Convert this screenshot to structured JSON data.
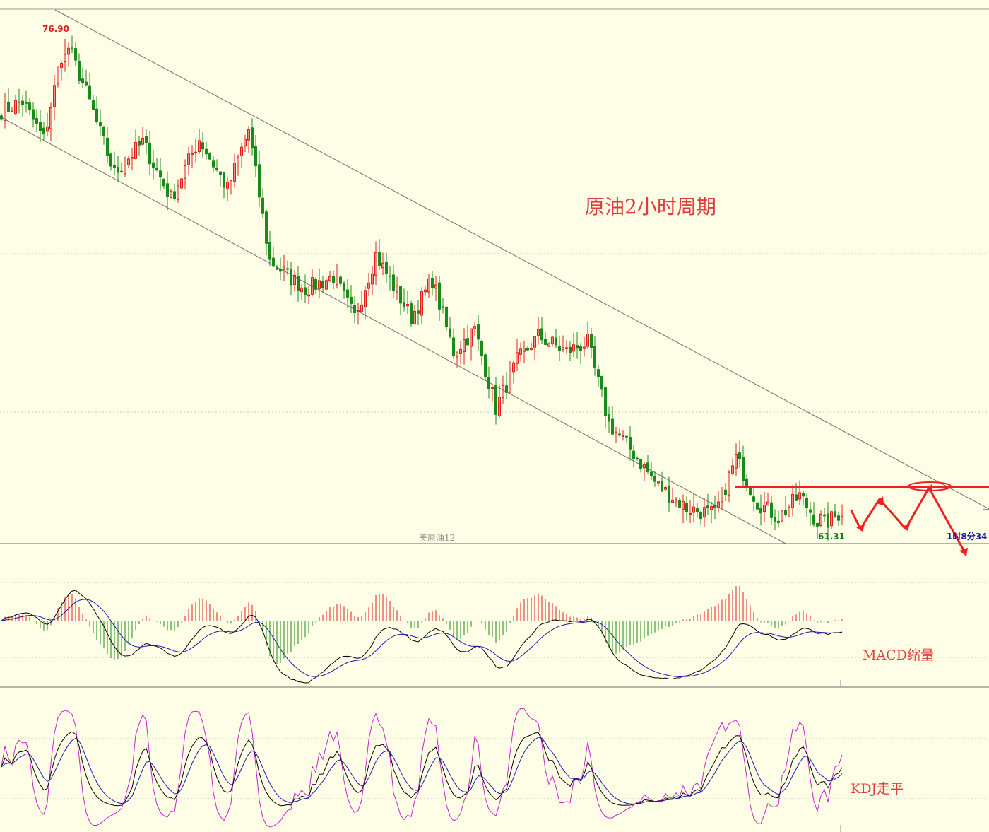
{
  "chart_data": [
    {
      "type": "candlestick",
      "title": "原油2小时周期",
      "symbol_label": "美原油12",
      "high_label": "76.90",
      "low_label": "61.31",
      "time_label": "1时8分34",
      "high": 76.9,
      "low": 61.31,
      "price_path": [
        [
          0,
          74.6
        ],
        [
          6,
          74.9
        ],
        [
          12,
          73.7
        ],
        [
          18,
          76.9
        ],
        [
          24,
          75.2
        ],
        [
          32,
          72.6
        ],
        [
          40,
          73.6
        ],
        [
          48,
          71.8
        ],
        [
          56,
          73.7
        ],
        [
          64,
          72.1
        ],
        [
          70,
          74.0
        ],
        [
          76,
          69.8
        ],
        [
          86,
          68.9
        ],
        [
          94,
          69.3
        ],
        [
          100,
          68.0
        ],
        [
          106,
          70.0
        ],
        [
          116,
          68.0
        ],
        [
          122,
          69.2
        ],
        [
          128,
          66.9
        ],
        [
          134,
          67.6
        ],
        [
          140,
          65.1
        ],
        [
          146,
          66.6
        ],
        [
          152,
          67.4
        ],
        [
          160,
          66.9
        ],
        [
          166,
          67.2
        ],
        [
          172,
          64.6
        ],
        [
          178,
          63.8
        ],
        [
          186,
          62.6
        ],
        [
          194,
          61.9
        ],
        [
          202,
          61.7
        ],
        [
          208,
          63.5
        ],
        [
          214,
          62.1
        ],
        [
          220,
          61.6
        ],
        [
          226,
          62.3
        ],
        [
          232,
          61.31
        ],
        [
          238,
          61.8
        ]
      ],
      "resistance_level": 62.3,
      "grid": true,
      "annotations": [
        "trend-channel",
        "resistance-line",
        "projected-path-arrows"
      ]
    },
    {
      "type": "histogram+line",
      "indicator": "MACD",
      "note": "MACD缩量"
    },
    {
      "type": "line",
      "indicator": "KDJ",
      "note": "KDJ走平"
    }
  ],
  "colors": {
    "background": "#fefee6",
    "up": "#e02020",
    "down": "#1a8a1a",
    "annotation": "#ee2222",
    "diff": "#000000",
    "dea": "#1a1ab0",
    "j_line": "#cc22cc",
    "grid": "#c8c8b4"
  }
}
